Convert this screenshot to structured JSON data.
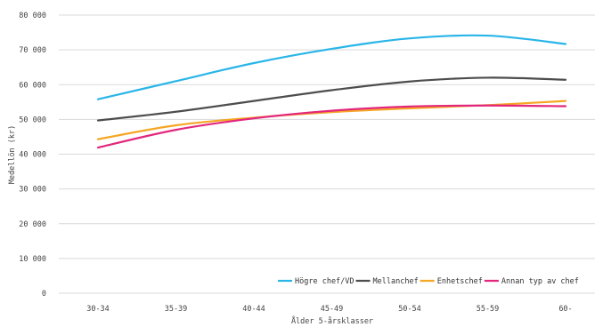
{
  "chart_data": {
    "type": "line",
    "title": "",
    "xlabel": "Ålder 5-årsklasser",
    "ylabel": "Medellön (kr)",
    "categories": [
      "30-34",
      "35-39",
      "40-44",
      "45-49",
      "50-54",
      "55-59",
      "60-"
    ],
    "ylim": [
      0,
      80000
    ],
    "yticks": [
      0,
      10000,
      20000,
      30000,
      40000,
      50000,
      60000,
      70000,
      80000
    ],
    "ytick_labels": [
      "0",
      "10 000",
      "20 000",
      "30 000",
      "40 000",
      "50 000",
      "60 000",
      "70 000",
      "80 000"
    ],
    "grid": true,
    "legend_position": "bottom-right",
    "series": [
      {
        "name": "Högre chef/VD",
        "color": "#29b5e8",
        "values": [
          55800,
          61000,
          66200,
          70300,
          73300,
          74100,
          71700
        ]
      },
      {
        "name": "Mellanchef",
        "color": "#4d4d4d",
        "values": [
          49700,
          52200,
          55300,
          58400,
          60900,
          62000,
          61400
        ]
      },
      {
        "name": "Enhetschef",
        "color": "#f5a623",
        "values": [
          44300,
          48300,
          50500,
          52100,
          53200,
          54100,
          55300
        ]
      },
      {
        "name": "Annan typ av chef",
        "color": "#e2277d",
        "values": [
          41900,
          47000,
          50300,
          52500,
          53700,
          54000,
          53800
        ]
      }
    ]
  }
}
